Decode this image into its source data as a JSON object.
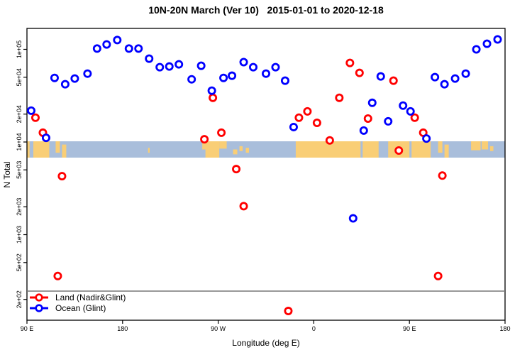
{
  "title": "10N-20N March (Ver 10)   2015-01-01 to 2020-12-18",
  "chart_data": {
    "type": "scatter",
    "title": "10N-20N March (Ver 10)   2015-01-01 to 2020-12-18",
    "xlabel": "Longitude (deg E)",
    "ylabel": "N Total",
    "x_axis": {
      "range": [
        90,
        540
      ],
      "ticks": [
        {
          "pos": 90,
          "label": "90 E"
        },
        {
          "pos": 180,
          "label": "180"
        },
        {
          "pos": 270,
          "label": "90 W"
        },
        {
          "pos": 360,
          "label": "0"
        },
        {
          "pos": 450,
          "label": "90 E"
        },
        {
          "pos": 540,
          "label": "180"
        }
      ]
    },
    "y_axis": {
      "scale": "log",
      "range": [
        110,
        170000
      ],
      "ticks": [
        {
          "value": 100000,
          "label": "1e+05"
        },
        {
          "value": 50000,
          "label": "5e+04"
        },
        {
          "value": 20000,
          "label": "2e+04"
        },
        {
          "value": 10000,
          "label": "1e+04"
        },
        {
          "value": 5000,
          "label": "5e+03"
        },
        {
          "value": 2000,
          "label": "2e+03"
        },
        {
          "value": 1000,
          "label": "1e+03"
        },
        {
          "value": 500,
          "label": "5e+02"
        },
        {
          "value": 200,
          "label": "2e+02"
        }
      ]
    },
    "legend": {
      "position": "bottom-left",
      "entries": [
        {
          "label": "Land (Nadir&Glint)",
          "color": "#FF0000"
        },
        {
          "label": "Ocean (Glint)",
          "color": "#0000FF"
        }
      ]
    },
    "series": [
      {
        "name": "Land (Nadir&Glint)",
        "color": "#FF0000",
        "marker": "open-circle",
        "points": [
          [
            98,
            18300
          ],
          [
            105,
            12600
          ],
          [
            123,
            4280
          ],
          [
            119,
            358
          ],
          [
            257,
            10700
          ],
          [
            265,
            30000
          ],
          [
            273,
            12600
          ],
          [
            287,
            5100
          ],
          [
            294,
            2030
          ],
          [
            336,
            150
          ],
          [
            346,
            18300
          ],
          [
            354,
            21400
          ],
          [
            363,
            16100
          ],
          [
            375,
            10400
          ],
          [
            384,
            30000
          ],
          [
            394,
            71400
          ],
          [
            403,
            55700
          ],
          [
            411,
            17900
          ],
          [
            435,
            45900
          ],
          [
            440,
            8090
          ],
          [
            455,
            18300
          ],
          [
            463,
            12600
          ],
          [
            481,
            4340
          ],
          [
            477,
            358
          ]
        ]
      },
      {
        "name": "Ocean (Glint)",
        "color": "#0000FF",
        "marker": "open-circle",
        "points": [
          [
            94,
            21800
          ],
          [
            108,
            11100
          ],
          [
            116,
            49200
          ],
          [
            126,
            42000
          ],
          [
            135,
            48400
          ],
          [
            147,
            54700
          ],
          [
            156,
            102000
          ],
          [
            165,
            113000
          ],
          [
            175,
            126000
          ],
          [
            186,
            102000
          ],
          [
            195,
            102000
          ],
          [
            205,
            79400
          ],
          [
            215,
            64200
          ],
          [
            224,
            65300
          ],
          [
            233,
            68900
          ],
          [
            245,
            47500
          ],
          [
            254,
            66500
          ],
          [
            264,
            35800
          ],
          [
            275,
            49200
          ],
          [
            283,
            51900
          ],
          [
            294,
            72800
          ],
          [
            303,
            64200
          ],
          [
            315,
            54700
          ],
          [
            324,
            64200
          ],
          [
            333,
            45900
          ],
          [
            341,
            14500
          ],
          [
            397,
            1500
          ],
          [
            407,
            13300
          ],
          [
            415,
            26500
          ],
          [
            423,
            51000
          ],
          [
            430,
            16700
          ],
          [
            444,
            24700
          ],
          [
            451,
            21400
          ],
          [
            466,
            10900
          ],
          [
            474,
            50100
          ],
          [
            483,
            42000
          ],
          [
            493,
            48400
          ],
          [
            503,
            54700
          ],
          [
            513,
            100000
          ],
          [
            523,
            115000
          ],
          [
            533,
            128000
          ]
        ]
      }
    ],
    "map_band": {
      "ocean_color": "#A9BEDB",
      "land_color": "#F9CE76",
      "value_range": [
        6800,
        10200
      ],
      "land_patches": [
        {
          "from": 90,
          "to": 92.5,
          "t": 0,
          "b": 1
        },
        {
          "from": 96,
          "to": 111,
          "t": 0,
          "b": 1
        },
        {
          "from": 117,
          "to": 121,
          "t": 0,
          "b": 0.7
        },
        {
          "from": 123,
          "to": 127,
          "t": 0.2,
          "b": 1
        },
        {
          "from": 204,
          "to": 205.5,
          "t": 0.4,
          "b": 0.7
        },
        {
          "from": 255,
          "to": 259,
          "t": 0,
          "b": 0.5
        },
        {
          "from": 258,
          "to": 271,
          "t": 0,
          "b": 1
        },
        {
          "from": 271,
          "to": 278,
          "t": 0,
          "b": 0.45
        },
        {
          "from": 284,
          "to": 288,
          "t": 0.5,
          "b": 0.8
        },
        {
          "from": 290,
          "to": 293,
          "t": 0.3,
          "b": 0.6
        },
        {
          "from": 296,
          "to": 299,
          "t": 0.4,
          "b": 0.7
        },
        {
          "from": 343,
          "to": 404,
          "t": 0,
          "b": 1
        },
        {
          "from": 406,
          "to": 421,
          "t": 0,
          "b": 1
        },
        {
          "from": 430,
          "to": 450,
          "t": 0,
          "b": 1
        },
        {
          "from": 452,
          "to": 470,
          "t": 0,
          "b": 1
        },
        {
          "from": 477,
          "to": 481,
          "t": 0,
          "b": 0.7
        },
        {
          "from": 483,
          "to": 487,
          "t": 0.2,
          "b": 1
        },
        {
          "from": 508,
          "to": 517,
          "t": 0,
          "b": 0.55
        },
        {
          "from": 518,
          "to": 524,
          "t": 0,
          "b": 0.5
        },
        {
          "from": 526,
          "to": 529,
          "t": 0.3,
          "b": 0.6
        }
      ]
    }
  }
}
